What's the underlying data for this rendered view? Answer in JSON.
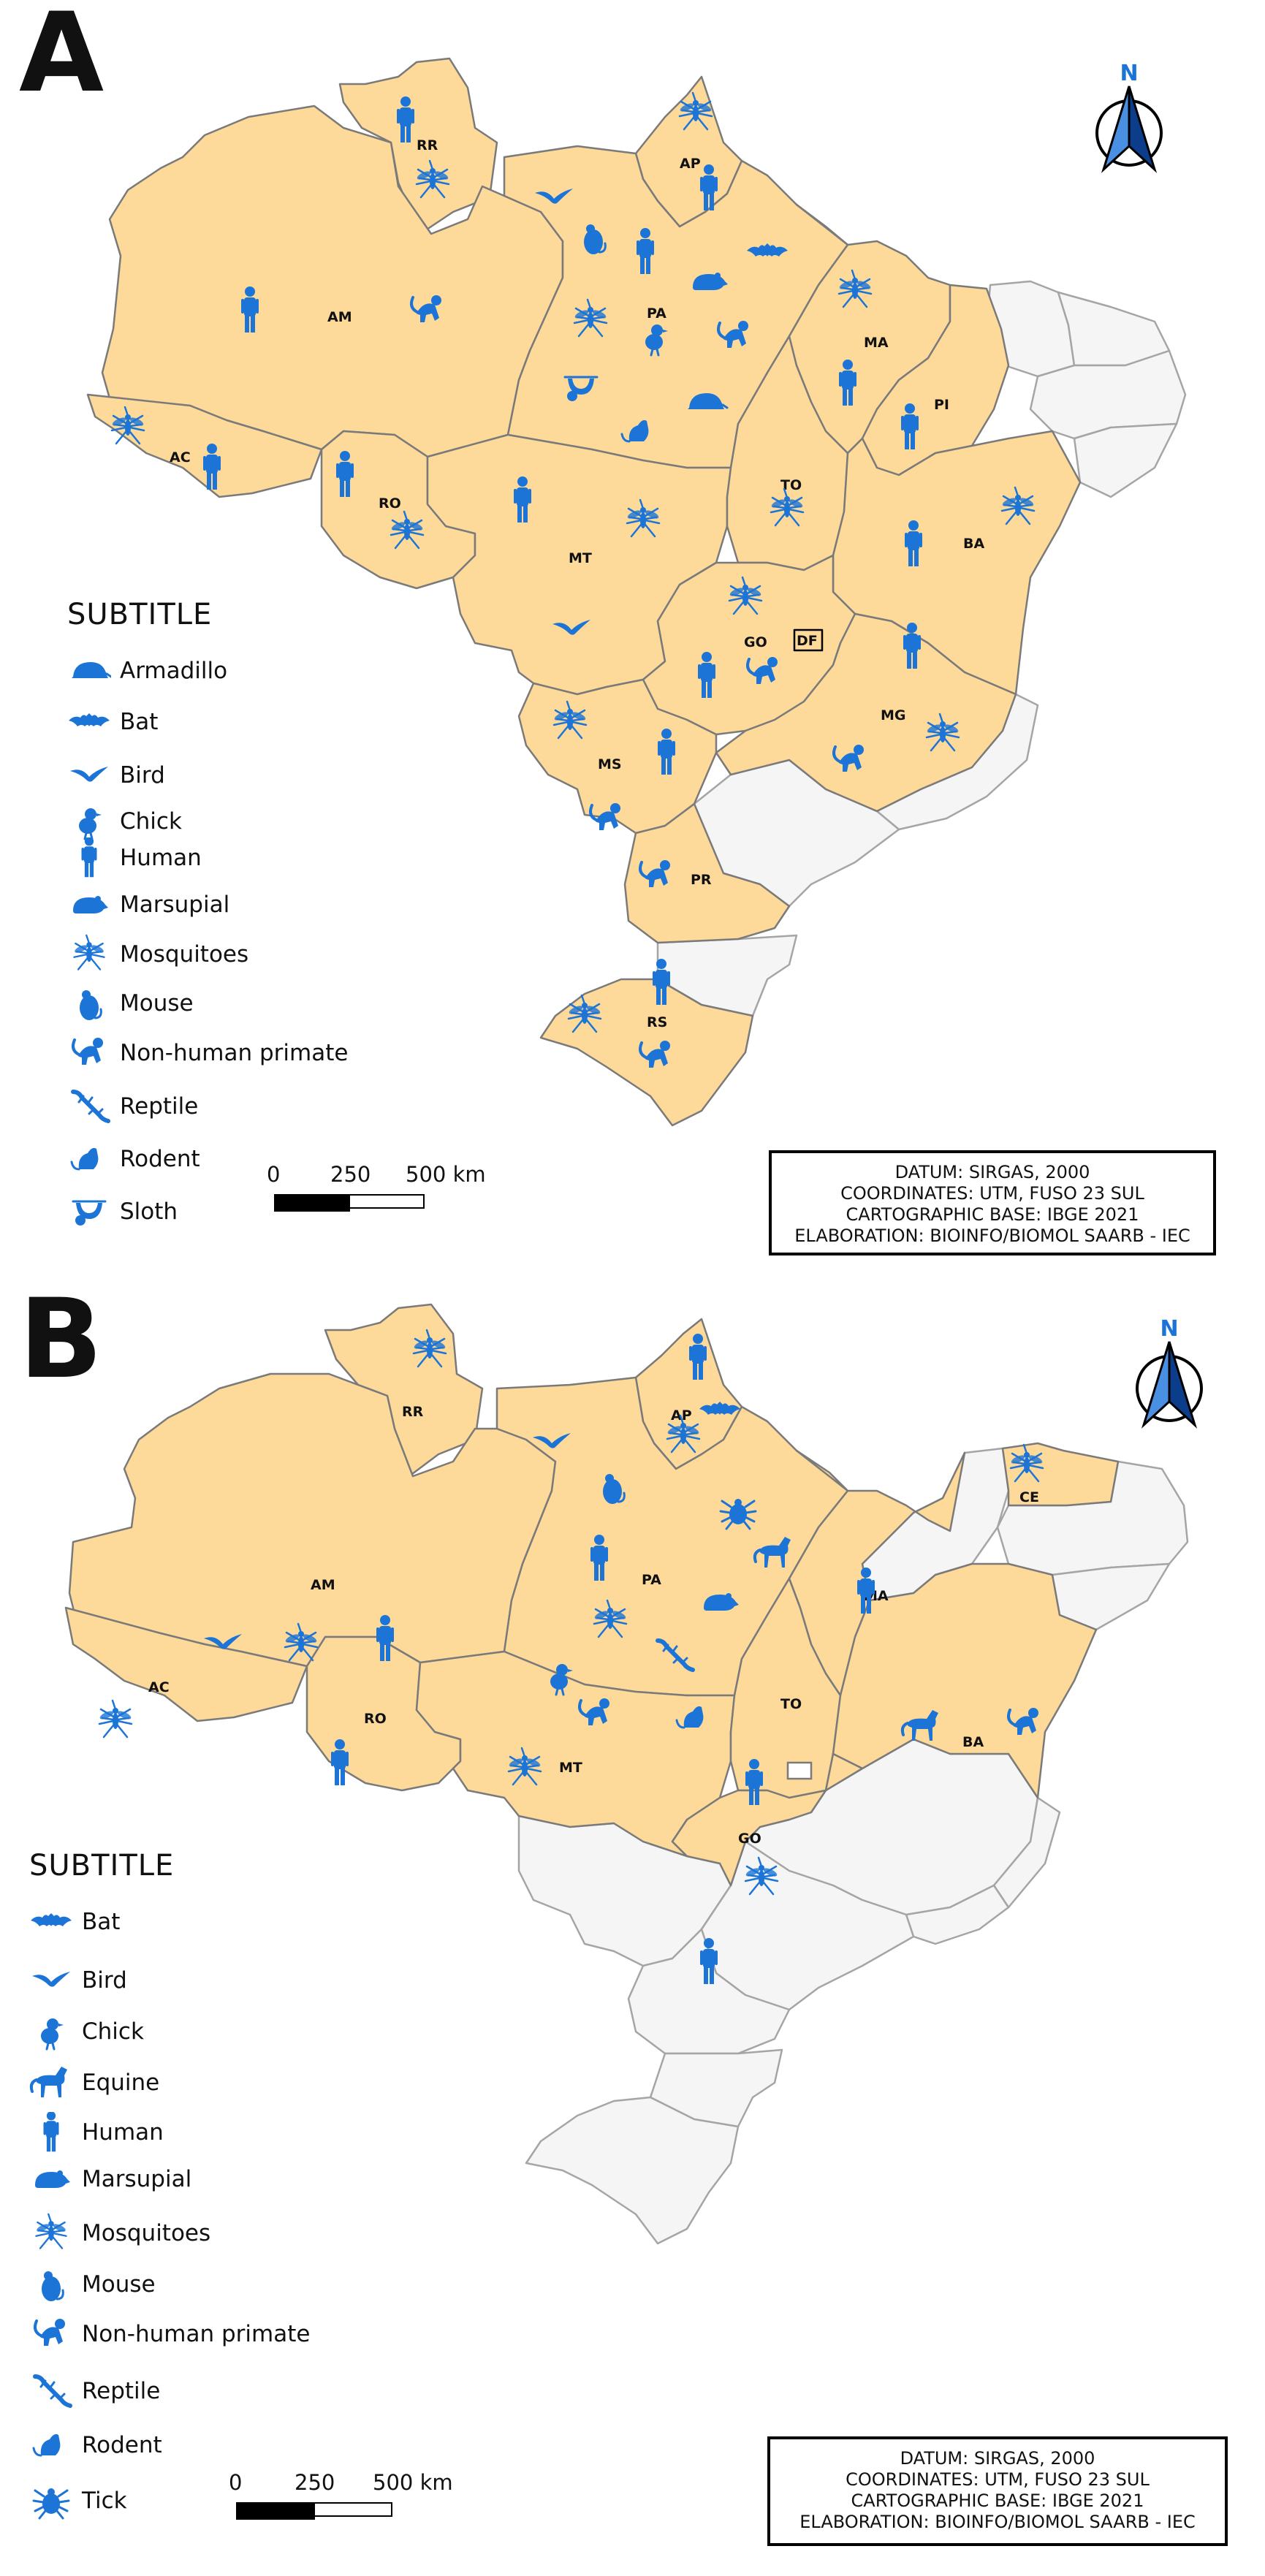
{
  "panels": [
    {
      "letter": "A",
      "legend_title": "SUBTITLE",
      "legend_items": [
        {
          "label": "Armadillo",
          "icon": "armadillo-icon"
        },
        {
          "label": "Bat",
          "icon": "bat-icon"
        },
        {
          "label": "Bird",
          "icon": "bird-icon"
        },
        {
          "label": "Chick",
          "icon": "chick-icon"
        },
        {
          "label": "Human",
          "icon": "human-icon"
        },
        {
          "label": "Marsupial",
          "icon": "marsupial-icon"
        },
        {
          "label": "Mosquitoes",
          "icon": "mosquito-icon"
        },
        {
          "label": "Mouse",
          "icon": "mouse-icon"
        },
        {
          "label": "Non-human primate",
          "icon": "primate-icon"
        },
        {
          "label": "Reptile",
          "icon": "reptile-icon"
        },
        {
          "label": "Rodent",
          "icon": "rodent-icon"
        },
        {
          "label": "Sloth",
          "icon": "sloth-icon"
        }
      ],
      "states_with_records": [
        "RR",
        "AP",
        "AM",
        "PA",
        "AC",
        "RO",
        "MT",
        "TO",
        "MA",
        "PI",
        "BA",
        "GO",
        "DF",
        "MS",
        "MG",
        "PR",
        "RS"
      ],
      "scale": {
        "ticks": [
          "0",
          "250",
          "500 km"
        ]
      },
      "info": [
        "DATUM: SIRGAS, 2000",
        "COORDINATES: UTM, FUSO 23 SUL",
        "CARTOGRAPHIC BASE: IBGE 2021",
        "ELABORATION: BIOINFO/BIOMOL SAARB - IEC"
      ],
      "north_label": "N"
    },
    {
      "letter": "B",
      "legend_title": "SUBTITLE",
      "legend_items": [
        {
          "label": "Bat",
          "icon": "bat-icon"
        },
        {
          "label": "Bird",
          "icon": "bird-icon"
        },
        {
          "label": "Chick",
          "icon": "chick-icon"
        },
        {
          "label": "Equine",
          "icon": "horse-icon"
        },
        {
          "label": "Human",
          "icon": "human-icon"
        },
        {
          "label": "Marsupial",
          "icon": "marsupial-icon"
        },
        {
          "label": "Mosquitoes",
          "icon": "mosquito-icon"
        },
        {
          "label": "Mouse",
          "icon": "mouse-icon"
        },
        {
          "label": "Non-human primate",
          "icon": "primate-icon"
        },
        {
          "label": "Reptile",
          "icon": "reptile-icon"
        },
        {
          "label": "Rodent",
          "icon": "rodent-icon"
        },
        {
          "label": "Tick",
          "icon": "tick-icon"
        }
      ],
      "states_with_records": [
        "RR",
        "AP",
        "AM",
        "PA",
        "AC",
        "RO",
        "MT",
        "TO",
        "MA",
        "CE",
        "BA",
        "GO"
      ],
      "scale": {
        "ticks": [
          "0",
          "250",
          "500 km"
        ]
      },
      "info": [
        "DATUM: SIRGAS, 2000",
        "COORDINATES: UTM, FUSO 23 SUL",
        "CARTOGRAPHIC BASE: IBGE 2021",
        "ELABORATION: BIOINFO/BIOMOL SAARB - IEC"
      ],
      "north_label": "N"
    }
  ],
  "colors": {
    "state_fill": "#fdd99a",
    "empty_fill": "#f5f5f5",
    "icon": "#1b74d6"
  }
}
